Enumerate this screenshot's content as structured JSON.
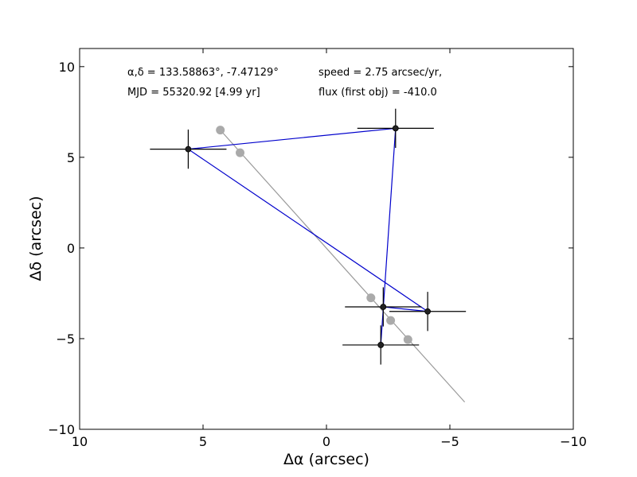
{
  "chart_data": {
    "type": "scatter",
    "xlabel": "Δα (arcsec)",
    "ylabel": "Δδ (arcsec)",
    "xlim": [
      10,
      -10
    ],
    "ylim": [
      -10,
      11
    ],
    "xticks": [
      {
        "value": 10,
        "label": "10"
      },
      {
        "value": 5,
        "label": "5"
      },
      {
        "value": 0,
        "label": "0"
      },
      {
        "value": -5,
        "label": "−5"
      },
      {
        "value": -10,
        "label": "−10"
      }
    ],
    "yticks": [
      {
        "value": -10,
        "label": "−10"
      },
      {
        "value": -5,
        "label": "−5"
      },
      {
        "value": 0,
        "label": "0"
      },
      {
        "value": 5,
        "label": "5"
      },
      {
        "value": 10,
        "label": "10"
      }
    ],
    "annotations": {
      "coords": "α,δ = 133.58863°, -7.47129°",
      "mjd": "MJD = 55320.92 [4.99 yr]",
      "speed": "speed = 2.75 arcsec/yr,",
      "flux": "flux (first obj) = -410.0"
    },
    "series": [
      {
        "marker": "circle",
        "color": "#222222",
        "line_color": "#0000cc",
        "points": [
          {
            "x": -2.2,
            "y": -5.35,
            "xerr": 1.0,
            "yerr": 0.9
          },
          {
            "x": -2.8,
            "y": 6.6,
            "xerr": 1.0,
            "yerr": 0.9
          },
          {
            "x": 5.6,
            "y": 5.45,
            "xerr": 1.0,
            "yerr": 0.9
          },
          {
            "x": -4.1,
            "y": -3.5,
            "xerr": 1.0,
            "yerr": 0.9
          },
          {
            "x": -2.3,
            "y": -3.25,
            "xerr": 1.0,
            "yerr": 0.9
          }
        ]
      },
      {
        "marker": "circle",
        "color": "#aaaaaa",
        "points": [
          {
            "x": 4.3,
            "y": 6.5
          },
          {
            "x": 3.5,
            "y": 5.25
          },
          {
            "x": -1.8,
            "y": -2.75
          },
          {
            "x": -2.6,
            "y": -4.0
          },
          {
            "x": -3.3,
            "y": -5.05
          }
        ]
      }
    ],
    "trend_line": {
      "color": "#999999",
      "x": [
        4.3,
        -5.6
      ],
      "y": [
        6.5,
        -8.5
      ]
    }
  }
}
